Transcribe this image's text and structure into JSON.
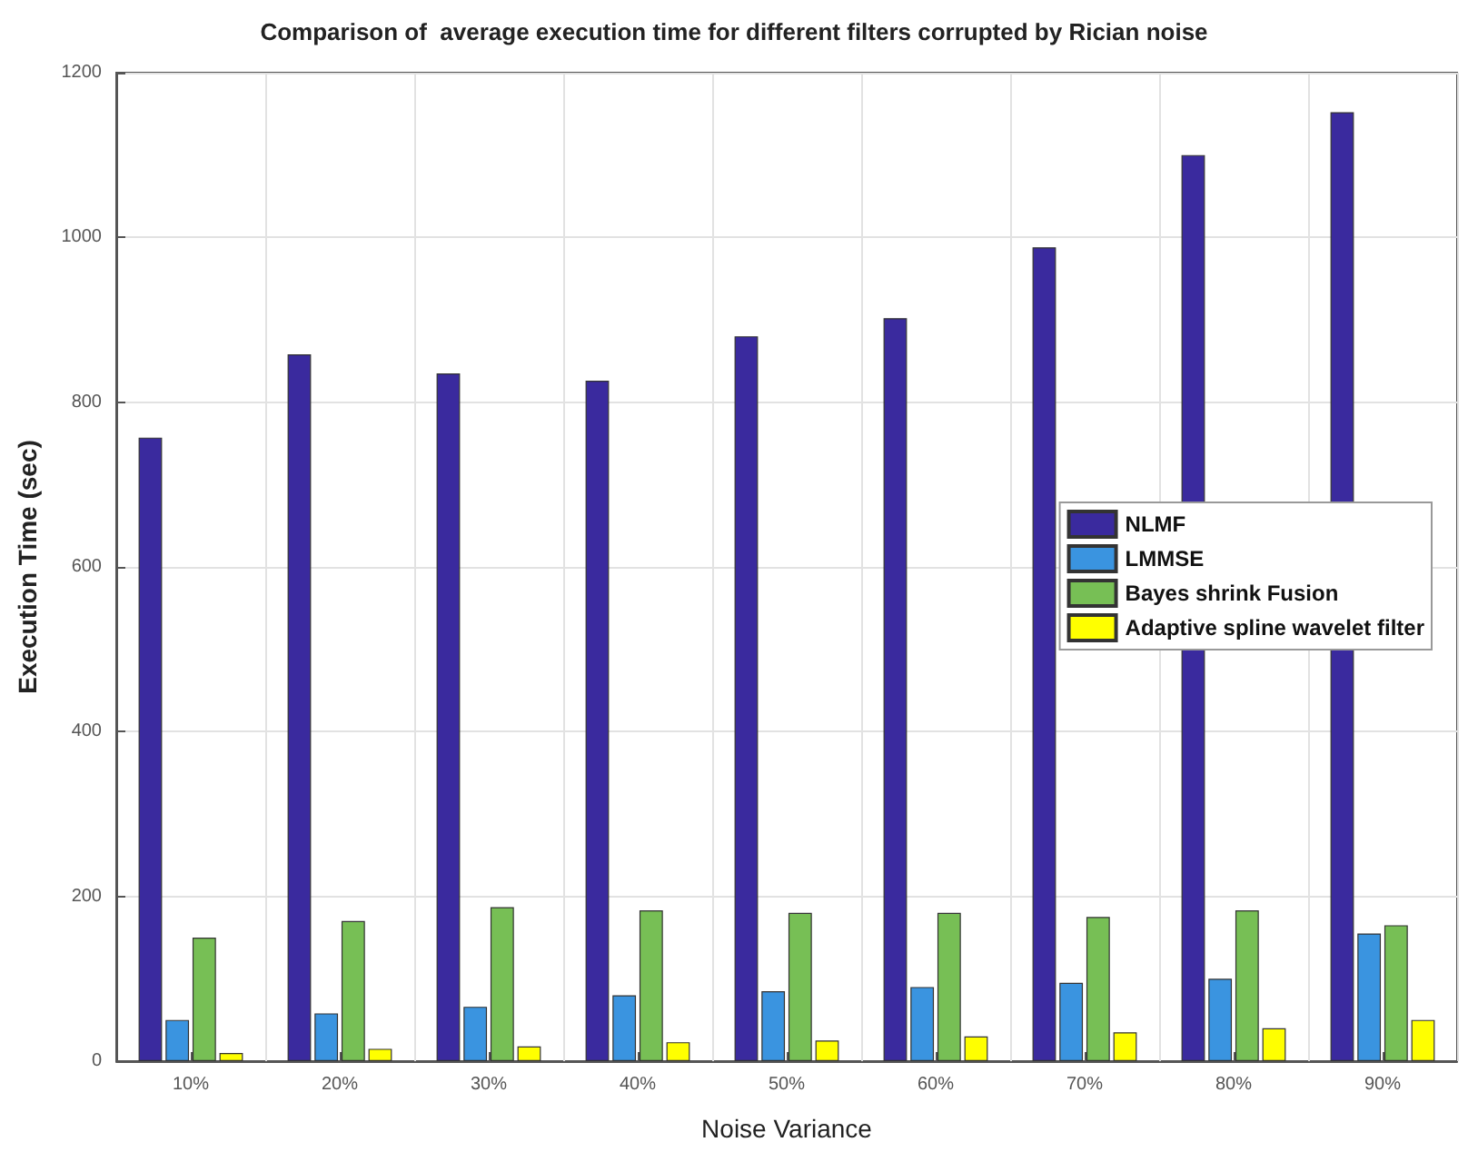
{
  "chart_data": {
    "type": "bar",
    "title": "Comparison of  average execution time for different filters corrupted by Rician noise",
    "xlabel": "Noise Variance",
    "ylabel": "Execution Time (sec)",
    "categories": [
      "10%",
      "20%",
      "30%",
      "40%",
      "50%",
      "60%",
      "70%",
      "80%",
      "90%"
    ],
    "series": [
      {
        "name": "NLMF",
        "color": "#3a2a9e",
        "values": [
          757,
          858,
          835,
          826,
          880,
          902,
          988,
          1100,
          1152
        ]
      },
      {
        "name": "LMMSE",
        "color": "#3a94e0",
        "values": [
          50,
          58,
          66,
          80,
          85,
          90,
          95,
          100,
          155
        ]
      },
      {
        "name": "Bayes shrink Fusion",
        "color": "#77bf55",
        "values": [
          150,
          170,
          187,
          183,
          180,
          180,
          175,
          183,
          165
        ]
      },
      {
        "name": "Adaptive spline wavelet filter",
        "color": "#ffff00",
        "values": [
          10,
          15,
          18,
          23,
          25,
          30,
          35,
          40,
          50
        ]
      }
    ],
    "ylim": [
      0,
      1200
    ],
    "yticks": [
      0,
      200,
      400,
      600,
      800,
      1000,
      1200
    ],
    "grid": true,
    "legend": "right"
  }
}
